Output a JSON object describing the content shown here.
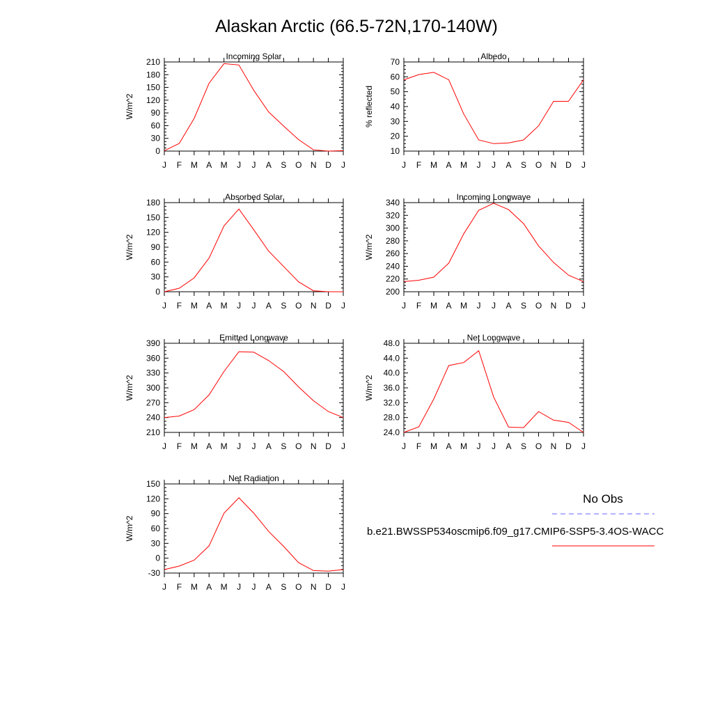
{
  "figure": {
    "title": "Alaskan Arctic (66.5-72N,170-140W)"
  },
  "legend": {
    "obs_label": "No Obs",
    "obs_color": "#6666ff",
    "model_label": "b.e21.BWSSP534oscmip6.f09_g17.CMIP6-SSP5-3.4OS-WACC",
    "model_color": "#ff0000"
  },
  "chart_data": [
    {
      "type": "line",
      "title": "Incoming Solar",
      "ylabel": "W/m^2",
      "categories": [
        "J",
        "F",
        "M",
        "A",
        "M",
        "J",
        "J",
        "A",
        "S",
        "O",
        "N",
        "D",
        "J"
      ],
      "ylim": [
        0,
        210
      ],
      "yticks": [
        0,
        30,
        60,
        90,
        120,
        150,
        180,
        210
      ],
      "ytick_labels": [
        "0",
        "30",
        "60",
        "90",
        "120",
        "150",
        "180",
        "210"
      ],
      "series": [
        {
          "values": [
            1,
            18,
            77,
            160,
            206,
            203,
            143,
            92,
            59,
            27,
            3,
            0,
            1
          ]
        }
      ]
    },
    {
      "type": "line",
      "title": "Albedo",
      "ylabel": "% reflected",
      "categories": [
        "J",
        "F",
        "M",
        "A",
        "M",
        "J",
        "J",
        "A",
        "S",
        "O",
        "N",
        "D",
        "J"
      ],
      "ylim": [
        10,
        70
      ],
      "yticks": [
        10,
        20,
        30,
        40,
        50,
        60,
        70
      ],
      "ytick_labels": [
        "10",
        "20",
        "30",
        "40",
        "50",
        "60",
        "70"
      ],
      "series": [
        {
          "values": [
            58,
            61.5,
            63,
            58,
            35,
            17.5,
            15,
            15.5,
            17.5,
            27,
            43.5,
            43.5,
            58
          ]
        }
      ]
    },
    {
      "type": "line",
      "title": "Absorbed Solar",
      "ylabel": "W/m^2",
      "categories": [
        "J",
        "F",
        "M",
        "A",
        "M",
        "J",
        "J",
        "A",
        "S",
        "O",
        "N",
        "D",
        "J"
      ],
      "ylim": [
        0,
        180
      ],
      "yticks": [
        0,
        30,
        60,
        90,
        120,
        150,
        180
      ],
      "ytick_labels": [
        "0",
        "30",
        "60",
        "90",
        "120",
        "150",
        "180"
      ],
      "series": [
        {
          "values": [
            0,
            7,
            28,
            68,
            133,
            167,
            125,
            82,
            51,
            20,
            2,
            0,
            0
          ]
        }
      ]
    },
    {
      "type": "line",
      "title": "Incoming Longwave",
      "ylabel": "W/m^2",
      "categories": [
        "J",
        "F",
        "M",
        "A",
        "M",
        "J",
        "J",
        "A",
        "S",
        "O",
        "N",
        "D",
        "J"
      ],
      "ylim": [
        200,
        340
      ],
      "yticks": [
        200,
        220,
        240,
        260,
        280,
        300,
        320,
        340
      ],
      "ytick_labels": [
        "200",
        "220",
        "240",
        "260",
        "280",
        "300",
        "320",
        "340"
      ],
      "series": [
        {
          "values": [
            216,
            218,
            223,
            245,
            291,
            328,
            339,
            329,
            307,
            272,
            246,
            226,
            216
          ]
        }
      ]
    },
    {
      "type": "line",
      "title": "Emitted Longwave",
      "ylabel": "W/m^2",
      "categories": [
        "J",
        "F",
        "M",
        "A",
        "M",
        "J",
        "J",
        "A",
        "S",
        "O",
        "N",
        "D",
        "J"
      ],
      "ylim": [
        210,
        390
      ],
      "yticks": [
        210,
        240,
        270,
        300,
        330,
        360,
        390
      ],
      "ytick_labels": [
        "210",
        "240",
        "270",
        "300",
        "330",
        "360",
        "390"
      ],
      "series": [
        {
          "values": [
            240,
            243,
            256,
            286,
            333,
            373,
            372,
            355,
            333,
            302,
            274,
            252,
            240
          ]
        }
      ]
    },
    {
      "type": "line",
      "title": "Net Longwave",
      "ylabel": "W/m^2",
      "categories": [
        "J",
        "F",
        "M",
        "A",
        "M",
        "J",
        "J",
        "A",
        "S",
        "O",
        "N",
        "D",
        "J"
      ],
      "ylim": [
        24,
        48
      ],
      "yticks": [
        24,
        28,
        32,
        36,
        40,
        44,
        48
      ],
      "ytick_labels": [
        "24.0",
        "28.0",
        "32.0",
        "36.0",
        "40.0",
        "44.0",
        "48.0"
      ],
      "series": [
        {
          "values": [
            24,
            25.5,
            33,
            42,
            42.8,
            46,
            33.5,
            25.4,
            25.3,
            29.6,
            27.3,
            26.7,
            24
          ]
        }
      ]
    },
    {
      "type": "line",
      "title": "Net Radiation",
      "ylabel": "W/m^2",
      "categories": [
        "J",
        "F",
        "M",
        "A",
        "M",
        "J",
        "J",
        "A",
        "S",
        "O",
        "N",
        "D",
        "J"
      ],
      "ylim": [
        -30,
        150
      ],
      "yticks": [
        -30,
        0,
        30,
        60,
        90,
        120,
        150
      ],
      "ytick_labels": [
        "-30",
        "0",
        "30",
        "60",
        "90",
        "120",
        "150"
      ],
      "series": [
        {
          "values": [
            -23,
            -16,
            -4,
            25,
            91,
            122,
            91,
            54,
            24,
            -9,
            -25,
            -26,
            -23
          ]
        }
      ]
    }
  ]
}
